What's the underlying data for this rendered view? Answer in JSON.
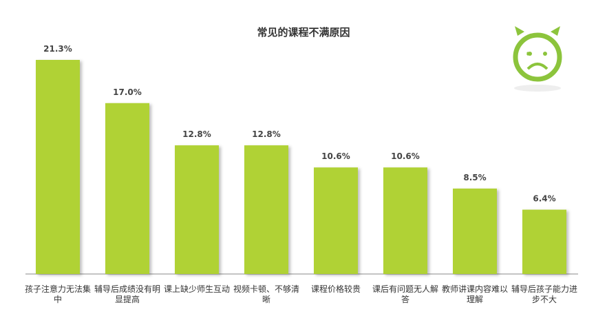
{
  "chart_data": {
    "type": "bar",
    "title": "常见的课程不满原因",
    "categories": [
      "孩子注意力无法集中",
      "辅导后成绩没有明显提高",
      "课上缺少师生互动",
      "视频卡顿、不够清晰",
      "课程价格较贵",
      "课后有问题无人解答",
      "教师讲课内容难以理解",
      "辅导后孩子能力进步不大"
    ],
    "values": [
      21.3,
      17,
      12.8,
      12.8,
      10.6,
      10.6,
      8.5,
      6.4
    ],
    "value_labels": [
      "21.3%",
      "17.0%",
      "12.8%",
      "12.8%",
      "10.6%",
      "10.6%",
      "8.5%",
      "6.4%"
    ],
    "color": "#b0d235"
  }
}
